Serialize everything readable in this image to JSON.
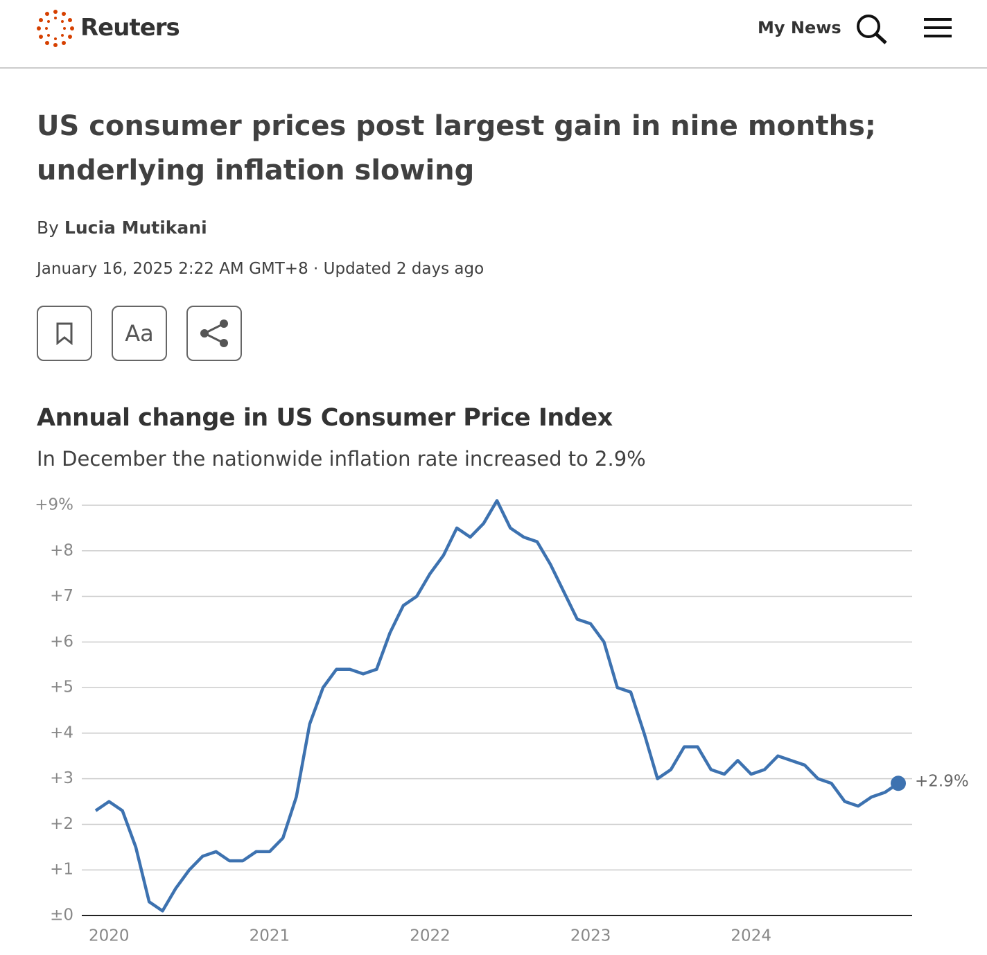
{
  "header": {
    "brand": "Reuters",
    "nav": "My News"
  },
  "article": {
    "title": "US consumer prices post largest gain in nine months; underlying inflation slowing",
    "byline_prefix": "By",
    "author": "Lucia Mutikani",
    "dateline": "January 16, 2025 2:22 AM GMT+8 · Updated 2 days ago",
    "font_button": "Aa"
  },
  "chart_data": {
    "type": "line",
    "title": "Annual change in US Consumer Price Index",
    "subtitle": "In December the nationwide inflation rate increased to 2.9%",
    "categories": [
      null,
      "2020",
      null,
      null,
      null,
      null,
      null,
      null,
      null,
      null,
      null,
      null,
      null,
      "2021",
      null,
      null,
      null,
      null,
      null,
      null,
      null,
      null,
      null,
      null,
      null,
      "2022",
      null,
      null,
      null,
      null,
      null,
      null,
      null,
      null,
      null,
      null,
      null,
      "2023",
      null,
      null,
      null,
      null,
      null,
      null,
      null,
      null,
      null,
      null,
      null,
      "2024",
      null,
      null,
      null,
      null,
      null,
      null,
      null,
      null,
      null,
      null,
      null
    ],
    "values": [
      2.3,
      2.5,
      2.3,
      1.5,
      0.3,
      0.1,
      0.6,
      1.0,
      1.3,
      1.4,
      1.2,
      1.2,
      1.4,
      1.4,
      1.7,
      2.6,
      4.2,
      5.0,
      5.4,
      5.4,
      5.3,
      5.4,
      6.2,
      6.8,
      7.0,
      7.5,
      7.9,
      8.5,
      8.3,
      8.6,
      9.1,
      8.5,
      8.3,
      8.2,
      7.7,
      7.1,
      6.5,
      6.4,
      6.0,
      5.0,
      4.9,
      4.0,
      3.0,
      3.2,
      3.7,
      3.7,
      3.2,
      3.1,
      3.4,
      3.1,
      3.2,
      3.5,
      3.4,
      3.3,
      3.0,
      2.9,
      2.5,
      2.4,
      2.6,
      2.7,
      2.9
    ],
    "value_labels": [
      null,
      null,
      null,
      null,
      null,
      null,
      null,
      null,
      null,
      null,
      null,
      null,
      null,
      null,
      null,
      null,
      null,
      null,
      null,
      null,
      null,
      null,
      null,
      null,
      null,
      null,
      null,
      null,
      null,
      null,
      null,
      null,
      null,
      null,
      null,
      null,
      null,
      null,
      null,
      null,
      null,
      null,
      null,
      null,
      null,
      null,
      null,
      null,
      null,
      null,
      null,
      null,
      null,
      null,
      null,
      null,
      null,
      null,
      null,
      null,
      "+2.9%"
    ],
    "color": "#3d72b0",
    "ylim": [
      0,
      9
    ],
    "yticks": [
      {
        "value": 0,
        "label": "±0"
      },
      {
        "value": 1,
        "label": "+1"
      },
      {
        "value": 2,
        "label": "+2"
      },
      {
        "value": 3,
        "label": "+3"
      },
      {
        "value": 4,
        "label": "+4"
      },
      {
        "value": 5,
        "label": "+5"
      },
      {
        "value": 6,
        "label": "+6"
      },
      {
        "value": 7,
        "label": "+7"
      },
      {
        "value": 8,
        "label": "+8"
      },
      {
        "value": 9,
        "label": "+9%"
      }
    ],
    "grid": true
  }
}
